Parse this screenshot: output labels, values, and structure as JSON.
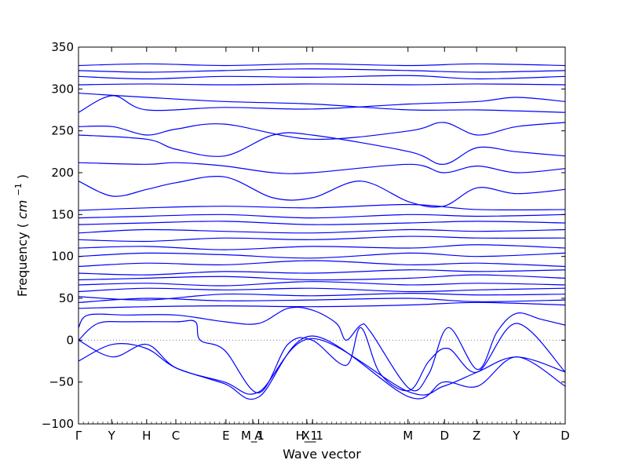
{
  "chart_data": {
    "type": "line",
    "title": "",
    "xlabel": "Wave vector",
    "ylabel": "Frequency",
    "ylabel_unit": "cm",
    "ylabel_unit_exponent": "−1",
    "ylim": [
      -100,
      350
    ],
    "yticks": [
      -100,
      -50,
      0,
      50,
      100,
      150,
      200,
      250,
      300,
      350
    ],
    "grid": false,
    "zero_line": true,
    "line_color": "#0000ff",
    "zero_line_color": "#7f7f9f",
    "xlim": [
      0,
      1
    ],
    "xticks": [
      {
        "label": "Γ",
        "x": 0.0
      },
      {
        "label": "Y",
        "x": 0.068
      },
      {
        "label": "H",
        "x": 0.14
      },
      {
        "label": "C",
        "x": 0.2
      },
      {
        "label": "E",
        "x": 0.303
      },
      {
        "label": "M_1",
        "x": 0.358
      },
      {
        "label": "A",
        "x": 0.37
      },
      {
        "label": "H_1",
        "x": 0.469
      },
      {
        "label": "X_1",
        "x": 0.481
      },
      {
        "label": "M",
        "x": 0.677
      },
      {
        "label": "D",
        "x": 0.752
      },
      {
        "label": "Z",
        "x": 0.818
      },
      {
        "label": "Y",
        "x": 0.9
      },
      {
        "label": "D",
        "x": 1.0
      }
    ],
    "series": [
      {
        "x": [
          0,
          0.07,
          0.14,
          0.2,
          0.3,
          0.37,
          0.48,
          0.68,
          0.75,
          0.82,
          0.9,
          1.0
        ],
        "values": [
          -25,
          -5,
          -10,
          -33,
          -52,
          -68,
          5,
          -68,
          -50,
          -55,
          -20,
          -55
        ]
      },
      {
        "x": [
          0,
          0.07,
          0.14,
          0.2,
          0.3,
          0.37,
          0.48,
          0.68,
          0.75,
          0.82,
          0.9,
          1.0
        ],
        "values": [
          0,
          -20,
          -5,
          -33,
          -50,
          -62,
          2,
          -62,
          -55,
          -38,
          -20,
          -38
        ]
      },
      {
        "x": [
          0,
          0.04,
          0.1,
          0.2,
          0.24,
          0.25,
          0.3,
          0.37,
          0.43,
          0.48,
          0.55,
          0.58,
          0.62,
          0.68,
          0.72,
          0.76,
          0.82,
          0.9,
          1.0
        ],
        "values": [
          0,
          20,
          22,
          22,
          22,
          0,
          -12,
          -63,
          -5,
          0,
          -30,
          15,
          -40,
          -60,
          -25,
          -10,
          -38,
          20,
          -38
        ]
      },
      {
        "x": [
          0,
          0.02,
          0.1,
          0.2,
          0.3,
          0.37,
          0.43,
          0.48,
          0.53,
          0.55,
          0.58,
          0.6,
          0.68,
          0.72,
          0.76,
          0.82,
          0.86,
          0.9,
          0.95,
          1.0
        ],
        "values": [
          15,
          30,
          30,
          30,
          22,
          20,
          38,
          36,
          20,
          0,
          18,
          10,
          -58,
          -40,
          15,
          -35,
          10,
          32,
          25,
          18
        ]
      },
      {
        "x": [
          0,
          0.14,
          0.3,
          0.48,
          0.68,
          0.82,
          1.0
        ],
        "values": [
          38,
          40,
          41,
          40,
          42,
          45,
          42
        ]
      },
      {
        "x": [
          0,
          0.14,
          0.3,
          0.48,
          0.68,
          0.82,
          1.0
        ],
        "values": [
          45,
          50,
          47,
          48,
          50,
          46,
          48
        ]
      },
      {
        "x": [
          0,
          0.14,
          0.3,
          0.48,
          0.68,
          0.82,
          1.0
        ],
        "values": [
          52,
          48,
          55,
          53,
          56,
          54,
          55
        ]
      },
      {
        "x": [
          0,
          0.14,
          0.3,
          0.48,
          0.68,
          0.82,
          1.0
        ],
        "values": [
          58,
          62,
          60,
          62,
          58,
          60,
          62
        ]
      },
      {
        "x": [
          0,
          0.14,
          0.3,
          0.48,
          0.68,
          0.82,
          1.0
        ],
        "values": [
          66,
          68,
          65,
          70,
          66,
          68,
          66
        ]
      },
      {
        "x": [
          0,
          0.14,
          0.3,
          0.48,
          0.68,
          0.82,
          1.0
        ],
        "values": [
          72,
          74,
          76,
          72,
          74,
          78,
          74
        ]
      },
      {
        "x": [
          0,
          0.14,
          0.3,
          0.48,
          0.68,
          0.82,
          1.0
        ],
        "values": [
          80,
          78,
          82,
          80,
          84,
          82,
          84
        ]
      },
      {
        "x": [
          0,
          0.14,
          0.3,
          0.48,
          0.68,
          0.82,
          1.0
        ],
        "values": [
          88,
          92,
          90,
          95,
          90,
          92,
          88
        ]
      },
      {
        "x": [
          0,
          0.14,
          0.3,
          0.48,
          0.68,
          0.82,
          1.0
        ],
        "values": [
          100,
          104,
          102,
          98,
          104,
          100,
          104
        ]
      },
      {
        "x": [
          0,
          0.14,
          0.3,
          0.48,
          0.68,
          0.82,
          1.0
        ],
        "values": [
          110,
          112,
          108,
          112,
          110,
          114,
          110
        ]
      },
      {
        "x": [
          0,
          0.14,
          0.3,
          0.48,
          0.68,
          0.82,
          1.0
        ],
        "values": [
          120,
          118,
          122,
          120,
          124,
          122,
          122
        ]
      },
      {
        "x": [
          0,
          0.14,
          0.3,
          0.48,
          0.68,
          0.82,
          1.0
        ],
        "values": [
          128,
          132,
          130,
          128,
          132,
          130,
          132
        ]
      },
      {
        "x": [
          0,
          0.14,
          0.3,
          0.48,
          0.68,
          0.82,
          1.0
        ],
        "values": [
          138,
          140,
          142,
          138,
          140,
          142,
          140
        ]
      },
      {
        "x": [
          0,
          0.14,
          0.3,
          0.48,
          0.68,
          0.82,
          1.0
        ],
        "values": [
          146,
          148,
          150,
          146,
          150,
          148,
          150
        ]
      },
      {
        "x": [
          0,
          0.14,
          0.3,
          0.48,
          0.68,
          0.82,
          1.0
        ],
        "values": [
          155,
          158,
          160,
          158,
          162,
          156,
          156
        ]
      },
      {
        "x": [
          0,
          0.07,
          0.14,
          0.2,
          0.3,
          0.4,
          0.48,
          0.58,
          0.68,
          0.75,
          0.82,
          0.9,
          1.0
        ],
        "values": [
          190,
          172,
          180,
          188,
          195,
          170,
          170,
          190,
          165,
          160,
          182,
          175,
          180
        ]
      },
      {
        "x": [
          0,
          0.14,
          0.2,
          0.3,
          0.4,
          0.48,
          0.68,
          0.75,
          0.82,
          0.9,
          1.0
        ],
        "values": [
          212,
          210,
          212,
          208,
          200,
          200,
          210,
          200,
          208,
          200,
          205
        ]
      },
      {
        "x": [
          0,
          0.14,
          0.2,
          0.3,
          0.4,
          0.48,
          0.68,
          0.75,
          0.82,
          0.9,
          1.0
        ],
        "values": [
          245,
          240,
          228,
          220,
          245,
          245,
          225,
          210,
          230,
          225,
          220
        ]
      },
      {
        "x": [
          0,
          0.07,
          0.14,
          0.2,
          0.3,
          0.48,
          0.68,
          0.75,
          0.82,
          0.9,
          1.0
        ],
        "values": [
          255,
          255,
          245,
          252,
          258,
          240,
          250,
          260,
          245,
          255,
          260
        ]
      },
      {
        "x": [
          0,
          0.07,
          0.14,
          0.3,
          0.48,
          0.68,
          0.82,
          0.9,
          1.0
        ],
        "values": [
          272,
          292,
          275,
          278,
          276,
          282,
          285,
          290,
          285
        ]
      },
      {
        "x": [
          0,
          0.14,
          0.3,
          0.48,
          0.68,
          0.82,
          1.0
        ],
        "values": [
          295,
          290,
          285,
          282,
          275,
          275,
          272
        ]
      },
      {
        "x": [
          0,
          0.14,
          0.3,
          0.48,
          0.68,
          0.82,
          1.0
        ],
        "values": [
          305,
          306,
          305,
          306,
          305,
          306,
          305
        ]
      },
      {
        "x": [
          0,
          0.14,
          0.3,
          0.48,
          0.68,
          0.82,
          1.0
        ],
        "values": [
          315,
          312,
          315,
          314,
          316,
          312,
          315
        ]
      },
      {
        "x": [
          0,
          0.14,
          0.3,
          0.48,
          0.68,
          0.82,
          1.0
        ],
        "values": [
          322,
          320,
          322,
          324,
          322,
          320,
          322
        ]
      },
      {
        "x": [
          0,
          0.14,
          0.3,
          0.48,
          0.68,
          0.82,
          1.0
        ],
        "values": [
          328,
          330,
          328,
          330,
          328,
          330,
          328
        ]
      }
    ]
  }
}
